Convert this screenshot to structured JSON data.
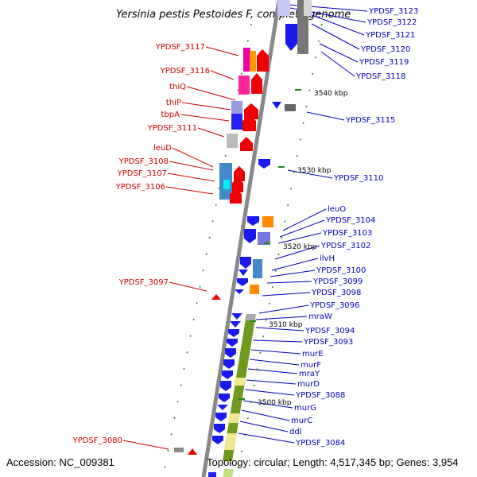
{
  "title": "Yersinia pestis Pestoides F, complete genome",
  "footer": {
    "accession": "Accession: NC_009381",
    "topology": "Topology: circular; Length: 4,517,345 bp; Genes: 3,954"
  },
  "colors": {
    "forward_gene": "#ee0000",
    "reverse_gene": "#1a1aee",
    "forward_label": "#cc0000",
    "reverse_label": "#0000bb",
    "backbone": "#888888"
  },
  "kbp_ticks": [
    "3540 kbp",
    "3530 kbp",
    "3520 kbp",
    "3510 kbp",
    "3500 kbp"
  ],
  "left_labels": [
    "YPDSF_3117",
    "YPDSF_3116",
    "thiQ",
    "thiP",
    "tbpA",
    "YPDSF_3111",
    "leuD",
    "YPDSF_3108",
    "YPDSF_3107",
    "YPDSF_3106",
    "YPDSF_3097",
    "YPDSF_3080"
  ],
  "right_labels": [
    "YPDSF_3123",
    "YPDSF_3122",
    "YPDSF_3121",
    "YPDSF_3120",
    "YPDSF_3119",
    "YPDSF_3118",
    "YPDSF_3115",
    "YPDSF_3110",
    "leuO",
    "YPDSF_3104",
    "YPDSF_3103",
    "YPDSF_3102",
    "ilvH",
    "YPDSF_3100",
    "YPDSF_3099",
    "YPDSF_3098",
    "YPDSF_3096",
    "mraW",
    "YPDSF_3094",
    "YPDSF_3093",
    "murE",
    "murF",
    "mraY",
    "murD",
    "YPDSF_3088",
    "murG",
    "murC",
    "ddl",
    "YPDSF_3084"
  ]
}
